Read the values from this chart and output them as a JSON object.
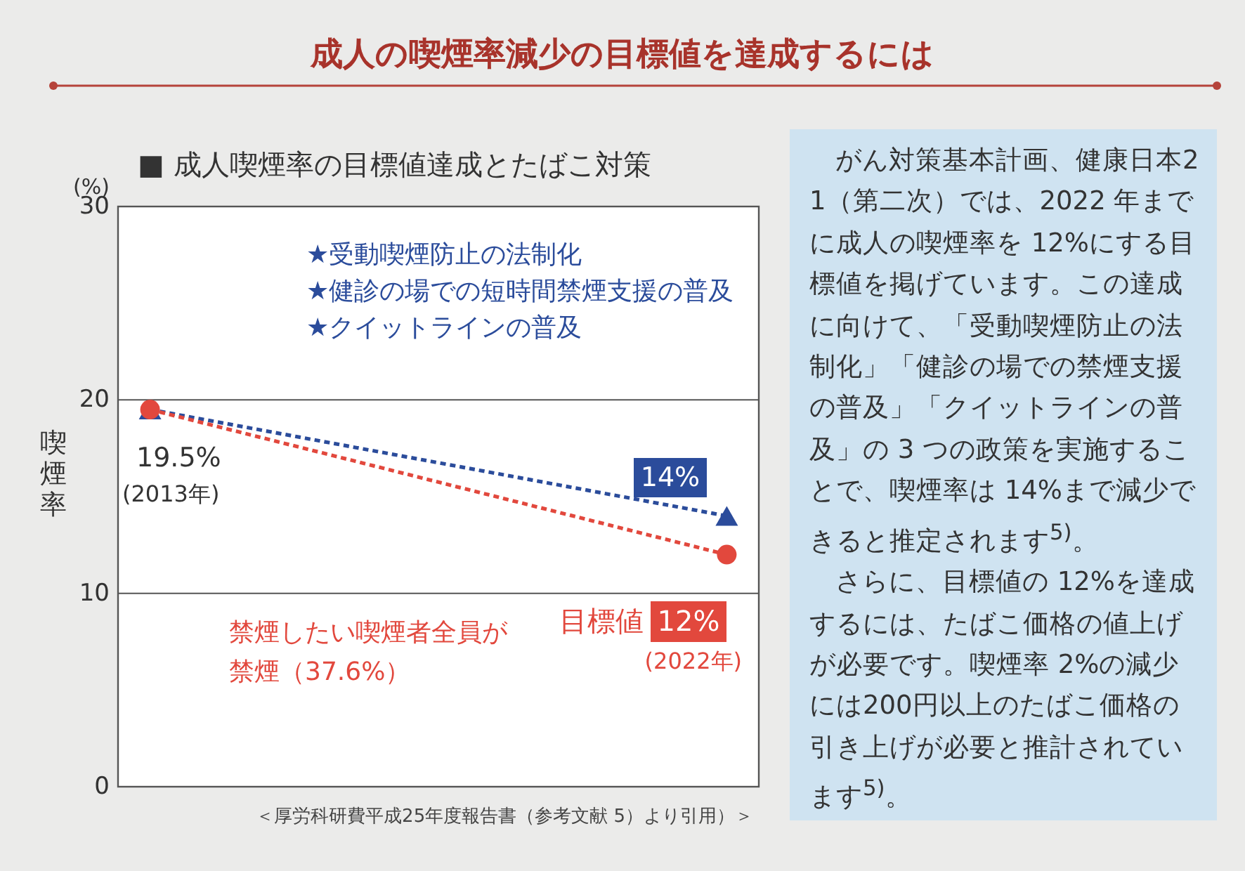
{
  "chart_data": {
    "type": "line",
    "title": "成人の喫煙率減少の目標値を達成するには",
    "subtitle": "■ 成人喫煙率の目標値達成とたばこ対策",
    "ylabel": "喫煙率",
    "categories": [
      null,
      null,
      null,
      null,
      null,
      null,
      null,
      null,
      null,
      null
    ],
    "series": [
      {
        "color": "#2b4c9b",
        "values": [
          19.5,
          null,
          null,
          null,
          null,
          null,
          null,
          null,
          null,
          14
        ],
        "marker": "triangle",
        "line_style": "dotted"
      },
      {
        "color": "#e2483d",
        "values": [
          19.5,
          null,
          null,
          null,
          null,
          null,
          null,
          null,
          null,
          12
        ],
        "marker": "circle",
        "line_style": "dotted"
      }
    ],
    "ylim": [
      0,
      30
    ],
    "yticks": [
      0,
      10,
      20,
      30
    ],
    "grid": "y",
    "annotations": [
      "(%)",
      "19.5%",
      "(2013年)",
      "★受動喫煙防止の法制化",
      "★健診の場での短時間禁煙支援の普及",
      "★クイットラインの普及",
      "14%",
      "禁煙したい喫煙者全員が",
      "禁煙（37.6%）",
      "目標値",
      "12%",
      "(2022年)",
      "＜厚労科研費平成25年度報告書（参考文献 5）より引用）＞",
      "がん対策基本計画、健康日本21（第二次）では、2022 年までに成人の喫煙率を 12%にする目標値を掲げています。この達成に向けて、「受動喫煙防止の法制化」「健診の場での禁煙支援の普及」「クイットラインの普及」の 3 つの政策を実施することで、喫煙率は 14%まで減少できると推定されます$^{5)}$。",
      "さらに、目標値の 12%を達成するには、たばこ価格の値上げが必要です。喫煙率 2%の減少には200円以上のたばこ価格の引き上げが必要と推計されています$^{5)}$。"
    ]
  }
}
